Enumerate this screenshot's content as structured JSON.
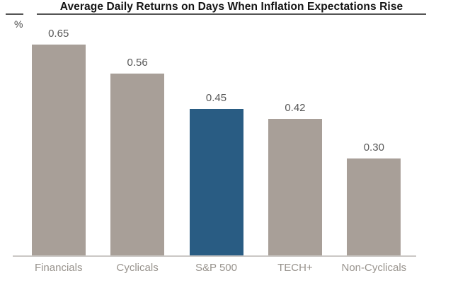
{
  "window": {
    "background_color": "#ffffff"
  },
  "chart_data": {
    "type": "bar",
    "title": "Average Daily Returns on Days When Inflation Expectations Rise",
    "ylabel": "%",
    "xlabel": "",
    "categories": [
      "Financials",
      "Cyclicals",
      "S&P 500",
      "TECH+",
      "Non-Cyclicals"
    ],
    "values": [
      0.65,
      0.56,
      0.45,
      0.42,
      0.3
    ],
    "value_labels": [
      "0.65",
      "0.56",
      "0.45",
      "0.42",
      "0.30"
    ],
    "ylim": [
      0,
      0.7
    ],
    "grid": false,
    "legend_position": "none",
    "bar_color": "#a89f98",
    "highlight_category": "S&P 500",
    "highlight_color": "#295c83",
    "title_color": "#141414",
    "title_underline_color": "#555555",
    "value_label_color": "#575757",
    "category_label_color": "#98938d",
    "axis_line_color": "#cbc8c5"
  }
}
